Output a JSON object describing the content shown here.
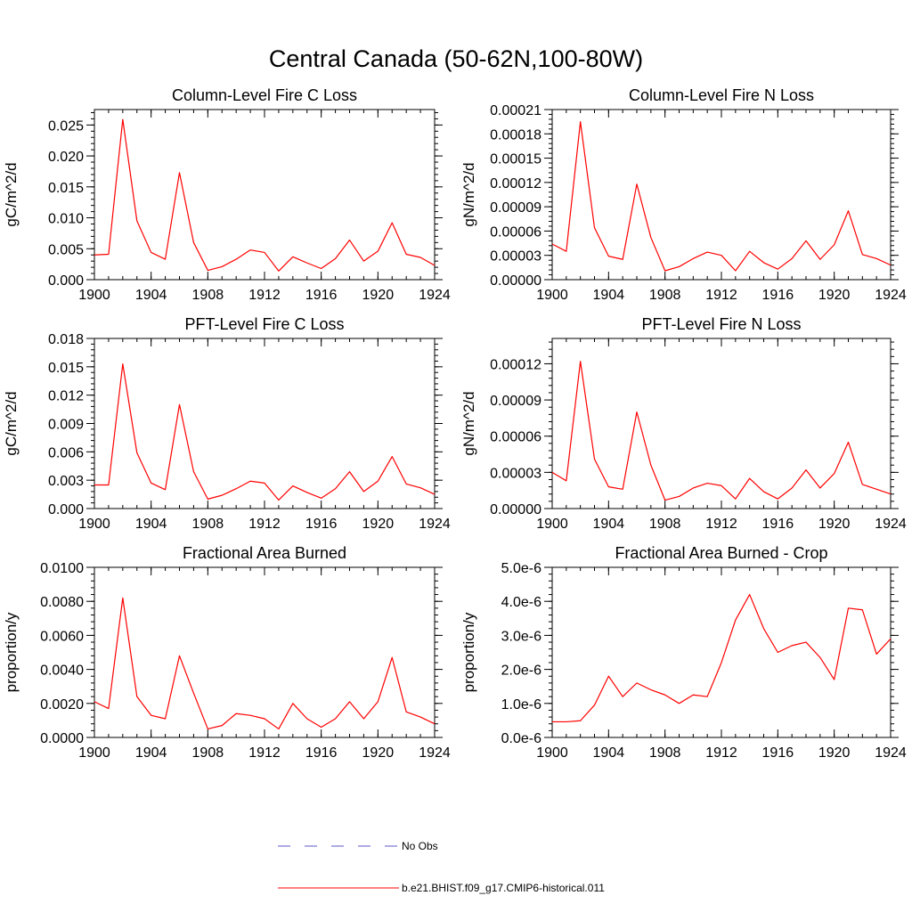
{
  "main_title": "Central Canada (50-62N,100-80W)",
  "colors": {
    "model_line": "#ff0000",
    "obs_line": "#5a5ac8",
    "axis": "#000000"
  },
  "legend": [
    {
      "label": "No Obs",
      "style": "dashed",
      "color": "#5a5ac8"
    },
    {
      "label": "b.e21.BHIST.f09_g17.CMIP6-historical.011",
      "style": "solid",
      "color": "#ff0000"
    }
  ],
  "chart_data": [
    {
      "type": "line",
      "title": "Column-Level Fire C Loss",
      "ylabel": "gC/m^2/d",
      "xlim": [
        1900,
        1924
      ],
      "ylim": [
        0,
        0.0275
      ],
      "xticks": [
        1900,
        1904,
        1908,
        1912,
        1916,
        1920,
        1924
      ],
      "xtick_labels": [
        "1900",
        "1904",
        "1908",
        "1912",
        "1916",
        "1920",
        "1924"
      ],
      "yticks": [
        0,
        0.005,
        0.01,
        0.015,
        0.02,
        0.025
      ],
      "ytick_labels": [
        "0.000",
        "0.005",
        "0.010",
        "0.015",
        "0.020",
        "0.025"
      ],
      "x": [
        1900,
        1901,
        1902,
        1903,
        1904,
        1905,
        1906,
        1907,
        1908,
        1909,
        1910,
        1911,
        1912,
        1913,
        1914,
        1915,
        1916,
        1917,
        1918,
        1919,
        1920,
        1921,
        1922,
        1923,
        1924
      ],
      "series": [
        {
          "name": "b.e21.BHIST.f09_g17.CMIP6-historical.011",
          "values": [
            0.004,
            0.0041,
            0.0259,
            0.0095,
            0.0044,
            0.0033,
            0.0173,
            0.006,
            0.0015,
            0.0021,
            0.0033,
            0.0048,
            0.0044,
            0.0014,
            0.0037,
            0.0027,
            0.0018,
            0.0034,
            0.0064,
            0.003,
            0.0046,
            0.0092,
            0.0041,
            0.0036,
            0.0023
          ]
        }
      ]
    },
    {
      "type": "line",
      "title": "Column-Level Fire N Loss",
      "ylabel": "gN/m^2/d",
      "xlim": [
        1900,
        1924
      ],
      "ylim": [
        0,
        0.00021
      ],
      "xticks": [
        1900,
        1904,
        1908,
        1912,
        1916,
        1920,
        1924
      ],
      "xtick_labels": [
        "1900",
        "1904",
        "1908",
        "1912",
        "1916",
        "1920",
        "1924"
      ],
      "yticks": [
        0,
        3e-05,
        6e-05,
        9e-05,
        0.00012,
        0.00015,
        0.00018,
        0.00021
      ],
      "ytick_labels": [
        "0.00000",
        "0.00003",
        "0.00006",
        "0.00009",
        "0.00012",
        "0.00015",
        "0.00018",
        "0.00021"
      ],
      "x": [
        1900,
        1901,
        1902,
        1903,
        1904,
        1905,
        1906,
        1907,
        1908,
        1909,
        1910,
        1911,
        1912,
        1913,
        1914,
        1915,
        1916,
        1917,
        1918,
        1919,
        1920,
        1921,
        1922,
        1923,
        1924
      ],
      "series": [
        {
          "name": "b.e21.BHIST.f09_g17.CMIP6-historical.011",
          "values": [
            4.4e-05,
            3.5e-05,
            0.000195,
            6.4e-05,
            2.9e-05,
            2.5e-05,
            0.000118,
            5.2e-05,
            1.1e-05,
            1.6e-05,
            2.6e-05,
            3.4e-05,
            3e-05,
            1.1e-05,
            3.5e-05,
            2.1e-05,
            1.3e-05,
            2.6e-05,
            4.8e-05,
            2.5e-05,
            4.3e-05,
            8.5e-05,
            3.1e-05,
            2.6e-05,
            1.8e-05
          ]
        }
      ]
    },
    {
      "type": "line",
      "title": "PFT-Level Fire C Loss",
      "ylabel": "gC/m^2/d",
      "xlim": [
        1900,
        1924
      ],
      "ylim": [
        0,
        0.018
      ],
      "xticks": [
        1900,
        1904,
        1908,
        1912,
        1916,
        1920,
        1924
      ],
      "xtick_labels": [
        "1900",
        "1904",
        "1908",
        "1912",
        "1916",
        "1920",
        "1924"
      ],
      "yticks": [
        0,
        0.003,
        0.006,
        0.009,
        0.012,
        0.015,
        0.018
      ],
      "ytick_labels": [
        "0.000",
        "0.003",
        "0.006",
        "0.009",
        "0.012",
        "0.015",
        "0.018"
      ],
      "x": [
        1900,
        1901,
        1902,
        1903,
        1904,
        1905,
        1906,
        1907,
        1908,
        1909,
        1910,
        1911,
        1912,
        1913,
        1914,
        1915,
        1916,
        1917,
        1918,
        1919,
        1920,
        1921,
        1922,
        1923,
        1924
      ],
      "series": [
        {
          "name": "b.e21.BHIST.f09_g17.CMIP6-historical.011",
          "values": [
            0.0025,
            0.0025,
            0.0153,
            0.0059,
            0.0027,
            0.002,
            0.011,
            0.0039,
            0.001,
            0.0014,
            0.0021,
            0.0029,
            0.0027,
            0.0009,
            0.0024,
            0.0017,
            0.0011,
            0.0021,
            0.0039,
            0.0018,
            0.0029,
            0.0055,
            0.0026,
            0.0022,
            0.0015
          ]
        }
      ]
    },
    {
      "type": "line",
      "title": "PFT-Level Fire N Loss",
      "ylabel": "gN/m^2/d",
      "xlim": [
        1900,
        1924
      ],
      "ylim": [
        0,
        0.000141
      ],
      "xticks": [
        1900,
        1904,
        1908,
        1912,
        1916,
        1920,
        1924
      ],
      "xtick_labels": [
        "1900",
        "1904",
        "1908",
        "1912",
        "1916",
        "1920",
        "1924"
      ],
      "yticks": [
        0,
        3e-05,
        6e-05,
        9e-05,
        0.00012
      ],
      "ytick_labels": [
        "0.00000",
        "0.00003",
        "0.00006",
        "0.00009",
        "0.00012"
      ],
      "x": [
        1900,
        1901,
        1902,
        1903,
        1904,
        1905,
        1906,
        1907,
        1908,
        1909,
        1910,
        1911,
        1912,
        1913,
        1914,
        1915,
        1916,
        1917,
        1918,
        1919,
        1920,
        1921,
        1922,
        1923,
        1924
      ],
      "series": [
        {
          "name": "b.e21.BHIST.f09_g17.CMIP6-historical.011",
          "values": [
            3e-05,
            2.3e-05,
            0.000122,
            4.1e-05,
            1.8e-05,
            1.6e-05,
            8e-05,
            3.6e-05,
            7e-06,
            1e-05,
            1.7e-05,
            2.1e-05,
            1.9e-05,
            8e-06,
            2.5e-05,
            1.4e-05,
            8e-06,
            1.7e-05,
            3.2e-05,
            1.7e-05,
            2.9e-05,
            5.5e-05,
            2e-05,
            1.6e-05,
            1.2e-05
          ]
        }
      ]
    },
    {
      "type": "line",
      "title": "Fractional Area Burned",
      "ylabel": "proportion/y",
      "xlim": [
        1900,
        1924
      ],
      "ylim": [
        0,
        0.01
      ],
      "xticks": [
        1900,
        1904,
        1908,
        1912,
        1916,
        1920,
        1924
      ],
      "xtick_labels": [
        "1900",
        "1904",
        "1908",
        "1912",
        "1916",
        "1920",
        "1924"
      ],
      "yticks": [
        0,
        0.002,
        0.004,
        0.006,
        0.008,
        0.01
      ],
      "ytick_labels": [
        "0.0000",
        "0.0020",
        "0.0040",
        "0.0060",
        "0.0080",
        "0.0100"
      ],
      "x": [
        1900,
        1901,
        1902,
        1903,
        1904,
        1905,
        1906,
        1907,
        1908,
        1909,
        1910,
        1911,
        1912,
        1913,
        1914,
        1915,
        1916,
        1917,
        1918,
        1919,
        1920,
        1921,
        1922,
        1923,
        1924
      ],
      "series": [
        {
          "name": "b.e21.BHIST.f09_g17.CMIP6-historical.011",
          "values": [
            0.0021,
            0.0017,
            0.0082,
            0.0024,
            0.0013,
            0.0011,
            0.0048,
            0.0026,
            0.0005,
            0.0007,
            0.0014,
            0.0013,
            0.0011,
            0.0005,
            0.002,
            0.0011,
            0.0006,
            0.0011,
            0.0021,
            0.0011,
            0.0021,
            0.0047,
            0.0015,
            0.0012,
            0.0008
          ]
        }
      ]
    },
    {
      "type": "line",
      "title": "Fractional Area Burned - Crop",
      "ylabel": "proportion/y",
      "xlim": [
        1900,
        1924
      ],
      "ylim": [
        0,
        5e-06
      ],
      "xticks": [
        1900,
        1904,
        1908,
        1912,
        1916,
        1920,
        1924
      ],
      "xtick_labels": [
        "1900",
        "1904",
        "1908",
        "1912",
        "1916",
        "1920",
        "1924"
      ],
      "yticks": [
        0,
        1e-06,
        2e-06,
        3e-06,
        4e-06,
        5e-06
      ],
      "ytick_labels": [
        "0.0e-6",
        "1.0e-6",
        "2.0e-6",
        "3.0e-6",
        "4.0e-6",
        "5.0e-6"
      ],
      "x": [
        1900,
        1901,
        1902,
        1903,
        1904,
        1905,
        1906,
        1907,
        1908,
        1909,
        1910,
        1911,
        1912,
        1913,
        1914,
        1915,
        1916,
        1917,
        1918,
        1919,
        1920,
        1921,
        1922,
        1923,
        1924
      ],
      "series": [
        {
          "name": "b.e21.BHIST.f09_g17.CMIP6-historical.011",
          "values": [
            4.6e-07,
            4.6e-07,
            4.9e-07,
            9.5e-07,
            1.8e-06,
            1.2e-06,
            1.6e-06,
            1.4e-06,
            1.25e-06,
            1e-06,
            1.25e-06,
            1.2e-06,
            2.2e-06,
            3.45e-06,
            4.2e-06,
            3.2e-06,
            2.5e-06,
            2.7e-06,
            2.8e-06,
            2.35e-06,
            1.7e-06,
            3.8e-06,
            3.75e-06,
            2.45e-06,
            2.9e-06
          ]
        }
      ]
    }
  ]
}
